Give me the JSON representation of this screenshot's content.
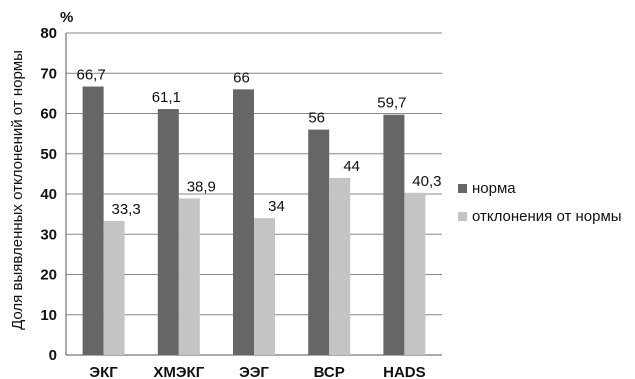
{
  "chart_data": {
    "type": "bar",
    "unit": "%",
    "ylabel": "Доля выявленных отклонений от нормы",
    "xlabel": "",
    "categories": [
      "ЭКГ",
      "ХМЭКГ",
      "ЭЭГ",
      "ВСР",
      "HADS"
    ],
    "series": [
      {
        "name": "норма",
        "values": [
          66.7,
          61.1,
          66,
          56,
          59.7
        ],
        "labels": [
          "66,7",
          "61,1",
          "66",
          "56",
          "59,7"
        ],
        "color": "#666666"
      },
      {
        "name": "отклонения от нормы",
        "values": [
          33.3,
          38.9,
          34,
          44,
          40.3
        ],
        "labels": [
          "33,3",
          "38,9",
          "34",
          "44",
          "40,3"
        ],
        "color": "#c4c4c4"
      }
    ],
    "ylim": [
      0,
      80
    ],
    "yticks": [
      "0",
      "10",
      "20",
      "30",
      "40",
      "50",
      "60",
      "70",
      "80"
    ],
    "grid": true,
    "legend": "right"
  }
}
